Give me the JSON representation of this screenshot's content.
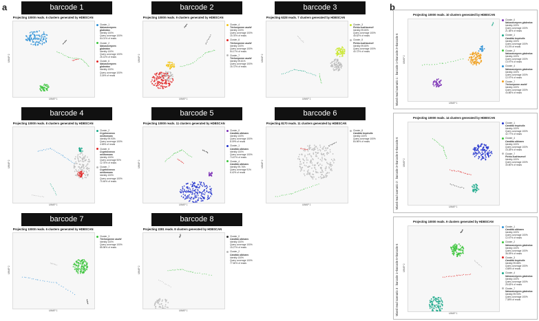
{
  "panel_a_label": "a",
  "panel_b_label": "b",
  "axis_x_label": "UMAP 1",
  "axis_y_label": "UMAP 2",
  "colors": {
    "blue": "#2b8fd6",
    "green": "#3cc43c",
    "red": "#e02424",
    "teal": "#1aa88a",
    "yellow": "#f2c418",
    "orange": "#f0a020",
    "purple": "#7a2fb5",
    "navy": "#2233cc",
    "lime": "#c9e62a",
    "grey": "#b8b8b8",
    "dark": "#333333"
  },
  "barcodes": [
    {
      "header": "barcode 1",
      "subtitle": "Projecting 10000 reads.  6 clusters generated by HDBSCAN",
      "legend": [
        {
          "cluster": "Cluster_1",
          "species": "Nakaseomyces glabratus",
          "lines": [
            "Identity 100%",
            "Query coverage 100%",
            "64.01% of reads"
          ],
          "color": "#2b8fd6"
        },
        {
          "cluster": "Cluster_2",
          "species": "Nakaseomyces glabratus",
          "lines": [
            "Identity 100%",
            "Query coverage 100%",
            "26.13% of reads"
          ],
          "color": "#3cc43c"
        },
        {
          "cluster": "Cluster_6",
          "species": "Nakaseomyces glabratus",
          "lines": [
            "Identity 100%",
            "Query coverage 100%",
            "3.26% of reads"
          ],
          "color": "#e02424"
        }
      ]
    },
    {
      "header": "barcode 2",
      "subtitle": "Projecting 10000 reads.  9 clusters generated by HDBSCAN",
      "legend": [
        {
          "cluster": "Cluster_4",
          "species": "Trichosporon asahii",
          "lines": [
            "Identity 100%",
            "Query coverage 100%",
            "15.76% of reads"
          ],
          "color": "#f2c418"
        },
        {
          "cluster": "Cluster_6",
          "species": "Trichosporon asahii",
          "lines": [
            "Identity 100%",
            "Query coverage 100%",
            "54.17% of reads"
          ],
          "color": "#e02424"
        },
        {
          "cluster": "Cluster_7",
          "species": "Trichosporon asahii",
          "lines": [
            "Identity 99.81%",
            "Query coverage 100%",
            "16.72% of reads"
          ],
          "color": "#b8b8b8"
        }
      ]
    },
    {
      "header": "barcode 3",
      "subtitle": "Projecting  6328 reads.  7 clusters generated by HDBSCAN",
      "legend": [
        {
          "cluster": "Cluster_3",
          "species": "Pichia kudriavzevii",
          "lines": [
            "Identity 99.80%",
            "Query coverage 100%",
            "45.52% of reads"
          ],
          "color": "#c9e62a"
        },
        {
          "cluster": "Cluster_5",
          "species": "Pichia kudriavzevii",
          "lines": [
            "Identity 99.80%",
            "Query coverage 100%",
            "40.72% of reads"
          ],
          "color": "#b8b8b8"
        }
      ]
    },
    {
      "header": "barcode 4",
      "subtitle": "Projecting 10000 reads.  8 clusters generated by HDBSCAN",
      "legend": [
        {
          "cluster": "Cluster_2",
          "species": "Cryptococcus neoformans",
          "lines": [
            "Identity 99.93%",
            "Query coverage 100%",
            "4.65% of reads"
          ],
          "color": "#1aa88a"
        },
        {
          "cluster": "Cluster_6",
          "species": "Cryptococcus neoformans",
          "lines": [
            "Identity 100%",
            "Query coverage 90%",
            "12.76% of reads"
          ],
          "color": "#e02424"
        },
        {
          "cluster": "Cluster_7",
          "species": "Cryptococcus neoformans",
          "lines": [
            "Identity 100%",
            "Query coverage 100%",
            "70.46% of reads"
          ],
          "color": "#b8b8b8"
        }
      ]
    },
    {
      "header": "barcode 5",
      "subtitle": "Projecting 10000 reads.  11 clusters generated by HDBSCAN",
      "legend": [
        {
          "cluster": "Cluster_0",
          "species": "Candida albicans",
          "lines": [
            "Identity 100%",
            "Query coverage 100%",
            "8.09% of reads"
          ],
          "color": "#7a2fb5"
        },
        {
          "cluster": "Cluster_1",
          "species": "Candida albicans",
          "lines": [
            "Identity 100%",
            "Query coverage 100%",
            "74.67% of reads"
          ],
          "color": "#2233cc"
        },
        {
          "cluster": "Cluster_4",
          "species": "Candida albicans",
          "lines": [
            "Identity 99.76%",
            "Query coverage 91%",
            "6.42% of reads"
          ],
          "color": "#3cc43c"
        }
      ]
    },
    {
      "header": "barcode 6",
      "subtitle": "Projecting  8170 reads.  11 clusters generated by HDBSCAN",
      "legend": [
        {
          "cluster": "Cluster_8",
          "species": "Candida tropicalis",
          "lines": [
            "Identity 100%",
            "Query coverage 100%",
            "84.96% of reads"
          ],
          "color": "#b8b8b8"
        }
      ]
    },
    {
      "header": "barcode 7",
      "subtitle": "Projecting 10000 reads.  6 clusters generated by HDBSCAN",
      "legend": [
        {
          "cluster": "Cluster_3",
          "species": "Trichosporon asahii",
          "lines": [
            "Identity 100%",
            "Query coverage 100%",
            "85.96% of reads"
          ],
          "color": "#3cc43c"
        }
      ]
    },
    {
      "header": "barcode 8",
      "subtitle": "Projecting  2281 reads.  8 clusters generated by HDBSCAN",
      "legend": [
        {
          "cluster": "Cluster_0",
          "species": "Candida albicans",
          "lines": [
            "Identity 100%",
            "Query coverage 100%",
            "15.27% of reads"
          ],
          "color": "#333333"
        },
        {
          "cluster": "Cluster_2",
          "species": "Candida albicans",
          "lines": [
            "Identity 100%",
            "Query coverage 100%",
            "77.60% of reads"
          ],
          "color": "#b8b8b8"
        }
      ]
    }
  ],
  "scenarios": [
    {
      "side_label": "Mixed read scenario 1 : barcode 1+barcode 2+barcode 6",
      "subtitle": "Projecting 10000 reads.  10 clusters generated by HDBSCAN",
      "legend": [
        {
          "cluster": "Cluster_0",
          "species": "Nakaseomyces glabratus",
          "lines": [
            "Identity 100%",
            "Query coverage 100%",
            "21.38% of reads"
          ],
          "color": "#7a2fb5"
        },
        {
          "cluster": "Cluster_1",
          "species": "Candida tropicalis",
          "lines": [
            "Identity 100%",
            "Query coverage 100%",
            "6.13% of reads"
          ],
          "color": "#1aa88a"
        },
        {
          "cluster": "Cluster_2",
          "species": "Nakaseomyces glabratus",
          "lines": [
            "Identity 100%",
            "Query coverage 100%",
            "13.97% of reads"
          ],
          "color": "#3cc43c"
        },
        {
          "cluster": "Cluster_4",
          "species": "Nakaseomyces glabratus",
          "lines": [
            "Identity 100%",
            "Query coverage 100%",
            "12.97% of reads"
          ],
          "color": "#2b8fd6"
        },
        {
          "cluster": "Cluster_7",
          "species": "Trichosporon asahii",
          "lines": [
            "Identity 100%",
            "Query coverage 100%",
            "44.86% of reads"
          ],
          "color": "#f0a020"
        }
      ]
    },
    {
      "side_label": "Mixed read scenario 2 : barcode 3+barcode 5+barcode 6",
      "subtitle": "Projecting 10000 reads.  14 clusters generated by HDBSCAN",
      "legend": [
        {
          "cluster": "Cluster_1",
          "species": "Candida tropicalis",
          "lines": [
            "Identity 100%",
            "Query coverage 100%",
            "42.77% of reads"
          ],
          "color": "#2233cc"
        },
        {
          "cluster": "Cluster_4",
          "species": "Candida albicans",
          "lines": [
            "Identity 100%",
            "Query coverage 100%",
            "15.28% of reads"
          ],
          "color": "#3cc43c"
        },
        {
          "cluster": "Cluster_7",
          "species": "Pichia kudriavzevii",
          "lines": [
            "Identity 100%",
            "Query coverage 100%",
            "30.80% of reads"
          ],
          "color": "#b8b8b8"
        }
      ]
    },
    {
      "side_label": "Mixed read scenario 3 : barcode 1+barcode 5+barcode 6",
      "subtitle": "Projecting 10000 reads.  9 clusters generated by HDBSCAN",
      "legend": [
        {
          "cluster": "Cluster_1",
          "species": "Candida albicans",
          "lines": [
            "Identity 100%",
            "Query coverage 100%",
            "12.57% of reads"
          ],
          "color": "#2b8fd6"
        },
        {
          "cluster": "Cluster_2",
          "species": "Nakaseomyces glabratus",
          "lines": [
            "Identity 100%",
            "Query coverage 100%",
            "36.09% of reads"
          ],
          "color": "#3cc43c"
        },
        {
          "cluster": "Cluster_3",
          "species": "Candida tropicalis",
          "lines": [
            "Identity 99.88%",
            "Query coverage 100%",
            "4.88% of reads"
          ],
          "color": "#e02424"
        },
        {
          "cluster": "Cluster_4",
          "species": "Nakaseomyces glabratus",
          "lines": [
            "Identity 100%",
            "Query coverage 100%",
            "25.63% of reads"
          ],
          "color": "#1aa88a"
        },
        {
          "cluster": "Cluster_7",
          "species": "Nakaseomyces glabratus",
          "lines": [
            "Identity 99.93%",
            "Query coverage 100%",
            "7.38% of reads"
          ],
          "color": "#b8b8b8"
        }
      ]
    }
  ]
}
